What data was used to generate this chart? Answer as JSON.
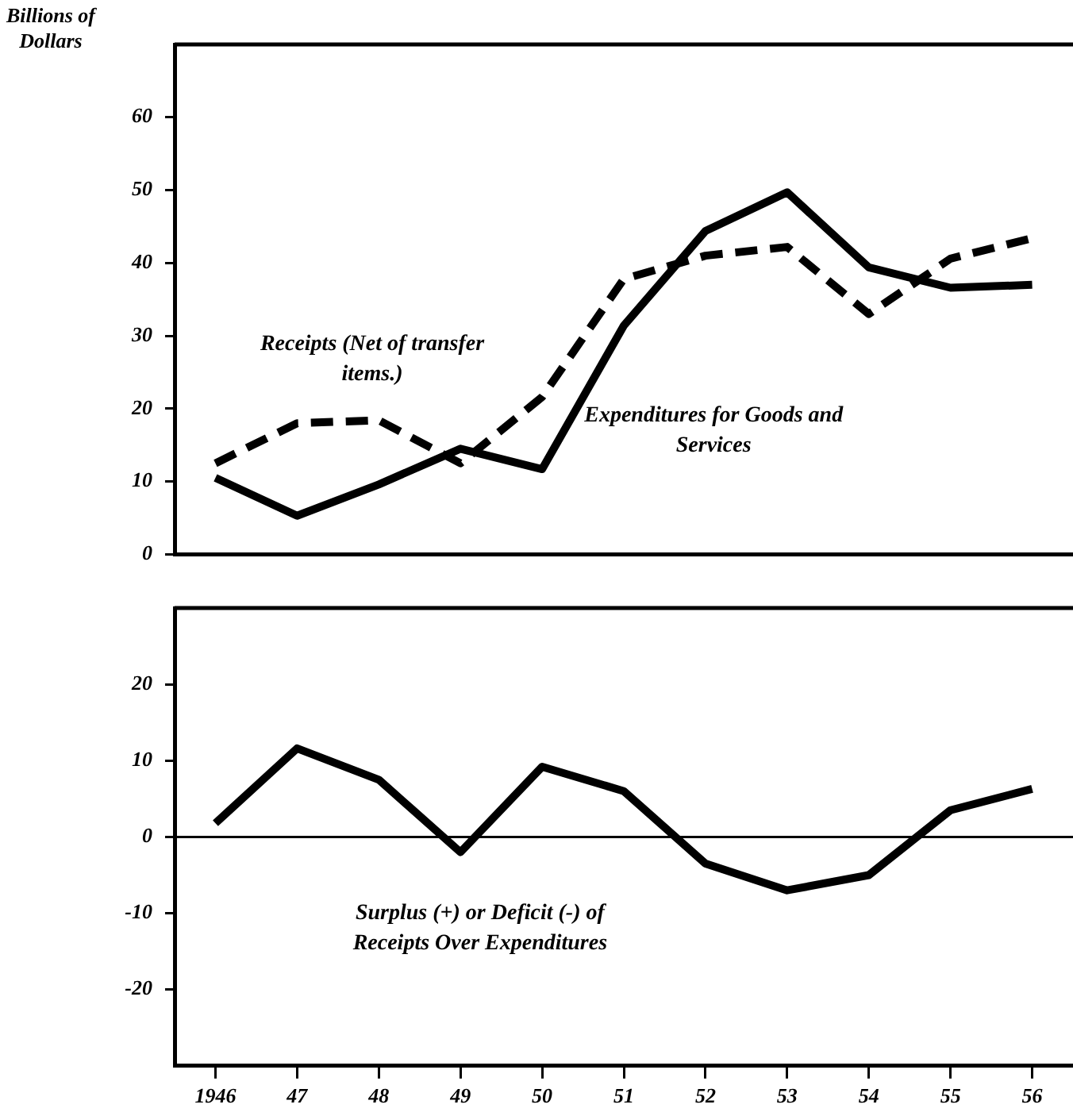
{
  "chart_data": [
    {
      "type": "line",
      "ylabel": "Billions of Dollars",
      "categories": [
        "1946",
        "47",
        "48",
        "49",
        "50",
        "51",
        "52",
        "53",
        "54",
        "55",
        "56"
      ],
      "series": [
        {
          "name": "Receipts (Net of transfer items.)",
          "color": "#000000",
          "line_style": "dashed",
          "values": [
            12.5,
            18,
            18.4,
            12.5,
            21.6,
            37.8,
            41,
            42.2,
            33,
            40.6,
            43.4
          ]
        },
        {
          "name": "Expenditures for Goods and Services",
          "color": "#000000",
          "line_style": "solid",
          "values": [
            10.5,
            5.3,
            9.6,
            14.5,
            11.7,
            31.4,
            44.4,
            49.7,
            39.4,
            36.6,
            37
          ]
        }
      ],
      "ylim": [
        0,
        70
      ],
      "yticks": [
        0,
        10,
        20,
        30,
        40,
        50,
        60
      ],
      "grid": false,
      "legend": false,
      "marker": "none",
      "tick_labels": "y"
    },
    {
      "type": "line",
      "categories": [
        "1946",
        "47",
        "48",
        "49",
        "50",
        "51",
        "52",
        "53",
        "54",
        "55",
        "56"
      ],
      "series": [
        {
          "name": "Surplus (+) or Deficit (-) of Receipts Over Expenditures",
          "color": "#000000",
          "line_style": "solid",
          "values": [
            1.8,
            11.6,
            7.5,
            -2,
            9.2,
            6,
            -3.5,
            -7,
            -5,
            3.5,
            6.3
          ]
        }
      ],
      "ylim": [
        -30,
        30
      ],
      "yticks": [
        -20,
        -10,
        0,
        10,
        20
      ],
      "ref_lines": [
        {
          "axis": "y",
          "value": 0
        }
      ],
      "grid": false,
      "legend": false,
      "marker": "none"
    }
  ]
}
